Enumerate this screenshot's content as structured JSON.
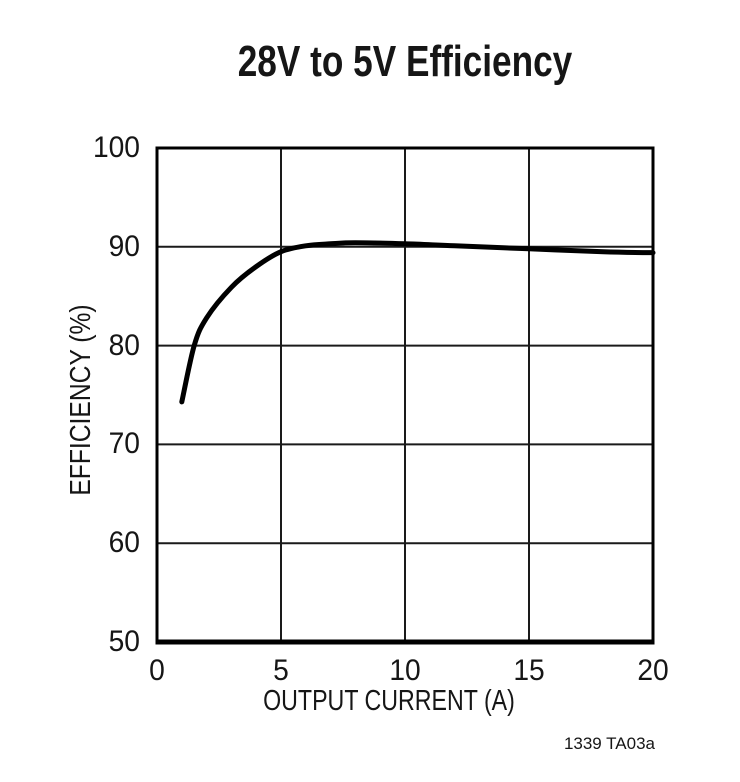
{
  "colors": {
    "background": "#ffffff",
    "axis": "#000000",
    "grid": "#1a1a1a",
    "text": "#161616",
    "curve": "#000000"
  },
  "chart_data": {
    "type": "line",
    "title": "28V to 5V Efficiency",
    "xlabel": "OUTPUT CURRENT (A)",
    "ylabel": "EFFICIENCY (%)",
    "xlim": [
      0,
      20
    ],
    "ylim": [
      50,
      100
    ],
    "xticks": [
      0,
      5,
      10,
      15,
      20
    ],
    "yticks": [
      50,
      60,
      70,
      80,
      90,
      100
    ],
    "grid": true,
    "legend": "none",
    "series": [
      {
        "name": "efficiency",
        "x": [
          1,
          1.5,
          2,
          3,
          4,
          5,
          6,
          7,
          8,
          10,
          12,
          15,
          18,
          20
        ],
        "y": [
          74.3,
          80.0,
          82.8,
          85.9,
          88.0,
          89.5,
          90.1,
          90.3,
          90.4,
          90.3,
          90.1,
          89.8,
          89.5,
          89.4
        ],
        "color": "#000000",
        "line_width": 5
      }
    ],
    "annotation": "1339 TA03a"
  }
}
